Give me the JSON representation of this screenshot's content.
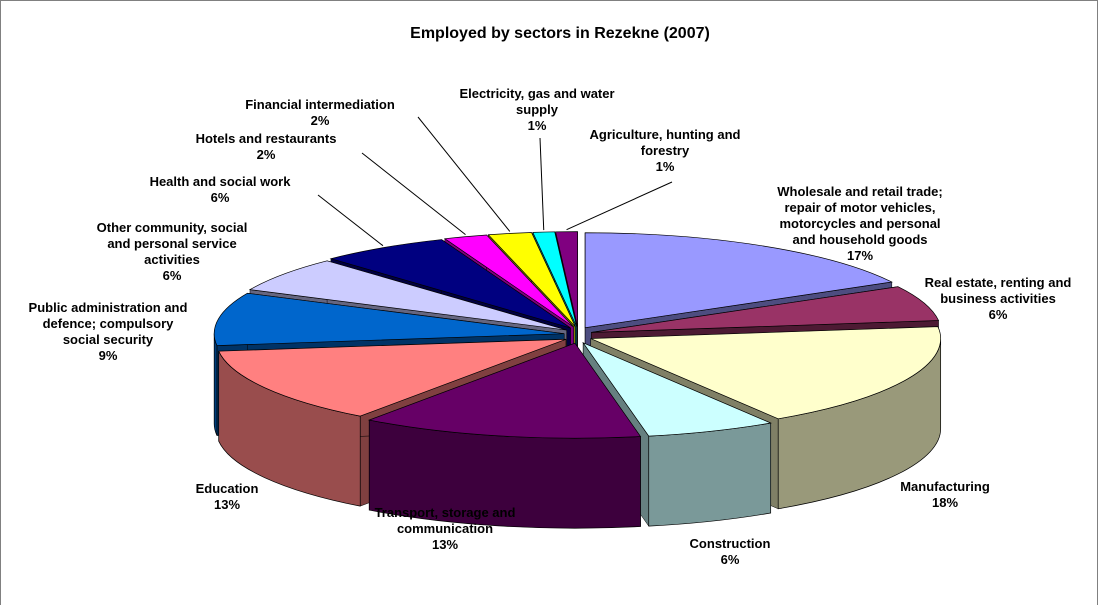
{
  "chart_data": {
    "type": "pie3d",
    "title": "Employed by sectors in Rezekne (2007)",
    "categories": [
      "Wholesale and retail trade; repair of motor vehicles, motorcycles and personal and household goods",
      "Real estate, renting and business activities",
      "Manufacturing",
      "Construction",
      "Transport, storage and communication",
      "Education",
      "Public administration and defence; compulsory social security",
      "Other community, social and personal service activities",
      "Health and social work",
      "Hotels and restaurants",
      "Financial intermediation",
      "Electricity, gas and water supply",
      "Agriculture, hunting and forestry"
    ],
    "values": [
      17,
      6,
      18,
      6,
      13,
      13,
      9,
      6,
      6,
      2,
      2,
      1,
      1
    ],
    "value_labels": [
      "17%",
      "6%",
      "18%",
      "6%",
      "13%",
      "13%",
      "9%",
      "6%",
      "6%",
      "2%",
      "2%",
      "1%",
      "1%"
    ],
    "colors": [
      "#9999ff",
      "#993366",
      "#ffffcc",
      "#ccffff",
      "#660066",
      "#ff8080",
      "#0066cc",
      "#ccccff",
      "#000080",
      "#ff00ff",
      "#ffff00",
      "#00ffff",
      "#800080"
    ]
  }
}
